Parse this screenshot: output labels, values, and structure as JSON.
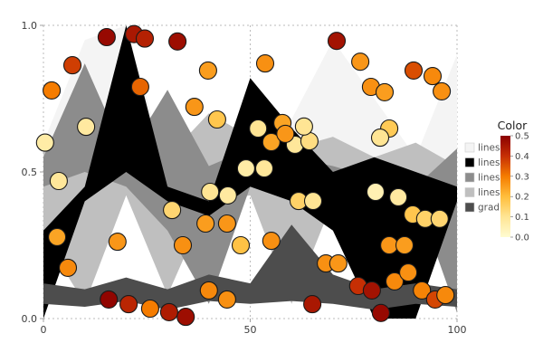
{
  "chart_data": {
    "type": "area+scatter",
    "title": "",
    "xlabel": "",
    "ylabel": "",
    "xlim": [
      0,
      100
    ],
    "ylim": [
      0,
      1
    ],
    "x_ticks": [
      0,
      50,
      100
    ],
    "x_tick_labels": [
      "0",
      "50",
      "100"
    ],
    "y_ticks": [
      0,
      0.5,
      1
    ],
    "y_tick_labels": [
      "0.0",
      "0.5",
      "1.0"
    ],
    "grid": "dotted",
    "grid_color": "#bbbbbb",
    "area_x": [
      0,
      10,
      20,
      30,
      40,
      50,
      60,
      70,
      80,
      90,
      100
    ],
    "areas": [
      {
        "label": "lines",
        "color": "#f4f4f4",
        "y1": [
          0.6,
          0.95,
          1.0,
          0.5,
          0.55,
          0.6,
          0.68,
          0.95,
          0.75,
          0.55,
          0.9
        ],
        "y0": [
          0.5,
          0.55,
          0.45,
          0.42,
          0.45,
          0.5,
          0.48,
          0.45,
          0.5,
          0.45,
          0.4
        ]
      },
      {
        "label": "lines",
        "color": "#000000",
        "y1": [
          0.3,
          0.45,
          1.0,
          0.45,
          0.4,
          0.82,
          0.65,
          0.5,
          0.55,
          0.5,
          0.45
        ],
        "y0": [
          0.0,
          0.4,
          0.5,
          0.4,
          0.35,
          0.45,
          0.4,
          0.3,
          0.0,
          0.0,
          0.4
        ]
      },
      {
        "label": "lines",
        "color": "#8c8c8c",
        "y1": [
          0.55,
          0.87,
          0.55,
          0.78,
          0.52,
          0.58,
          0.55,
          0.52,
          0.48,
          0.45,
          0.58
        ],
        "y0": [
          0.45,
          0.5,
          0.45,
          0.3,
          0.05,
          0.45,
          0.4,
          0.42,
          0.4,
          0.42,
          0.02
        ]
      },
      {
        "label": "lines",
        "color": "#bfbfbf",
        "y1": [
          0.58,
          0.52,
          0.48,
          0.55,
          0.7,
          0.62,
          0.58,
          0.62,
          0.55,
          0.6,
          0.52
        ],
        "y0": [
          0.28,
          0.05,
          0.42,
          0.08,
          0.4,
          0.42,
          0.05,
          0.4,
          0.45,
          0.3,
          0.28
        ]
      },
      {
        "label": "grad",
        "color": "#4d4d4d",
        "y1": [
          0.12,
          0.1,
          0.14,
          0.1,
          0.15,
          0.12,
          0.32,
          0.15,
          0.1,
          0.12,
          0.1
        ],
        "y0": [
          0.05,
          0.04,
          0.06,
          0.03,
          0.06,
          0.05,
          0.06,
          0.05,
          0.03,
          0.05,
          0.04
        ]
      }
    ],
    "draw_order": [
      0,
      3,
      2,
      1,
      4
    ],
    "point_radius": 9.5,
    "point_stroke": "#1a1a1a",
    "points": [
      [
        15.3,
        0.96,
        0.48
      ],
      [
        21.9,
        0.97,
        0.45
      ],
      [
        24.5,
        0.955,
        0.43
      ],
      [
        32.4,
        0.945,
        0.47
      ],
      [
        70.9,
        0.947,
        0.46
      ],
      [
        7.0,
        0.864,
        0.38
      ],
      [
        39.8,
        0.846,
        0.25
      ],
      [
        53.6,
        0.87,
        0.27
      ],
      [
        76.6,
        0.876,
        0.26
      ],
      [
        89.5,
        0.846,
        0.36
      ],
      [
        94.1,
        0.827,
        0.28
      ],
      [
        2.0,
        0.778,
        0.3
      ],
      [
        23.4,
        0.79,
        0.33
      ],
      [
        79.2,
        0.79,
        0.27
      ],
      [
        82.5,
        0.772,
        0.25
      ],
      [
        96.3,
        0.775,
        0.27
      ],
      [
        10.3,
        0.654,
        0.08
      ],
      [
        36.5,
        0.722,
        0.26
      ],
      [
        57.8,
        0.667,
        0.24
      ],
      [
        83.6,
        0.648,
        0.17
      ],
      [
        0.4,
        0.6,
        0.07
      ],
      [
        42.0,
        0.679,
        0.18
      ],
      [
        51.9,
        0.648,
        0.1
      ],
      [
        55.1,
        0.602,
        0.24
      ],
      [
        60.8,
        0.593,
        0.09
      ],
      [
        64.3,
        0.605,
        0.12
      ],
      [
        81.4,
        0.617,
        0.1
      ],
      [
        3.7,
        0.469,
        0.09
      ],
      [
        31.1,
        0.37,
        0.14
      ],
      [
        40.3,
        0.432,
        0.1
      ],
      [
        44.6,
        0.42,
        0.08
      ],
      [
        49.0,
        0.512,
        0.07
      ],
      [
        53.4,
        0.512,
        0.09
      ],
      [
        61.7,
        0.401,
        0.15
      ],
      [
        65.2,
        0.401,
        0.1
      ],
      [
        80.3,
        0.432,
        0.05
      ],
      [
        85.8,
        0.414,
        0.08
      ],
      [
        89.3,
        0.355,
        0.18
      ],
      [
        92.3,
        0.34,
        0.15
      ],
      [
        95.8,
        0.34,
        0.14
      ],
      [
        17.9,
        0.262,
        0.26
      ],
      [
        33.7,
        0.25,
        0.27
      ],
      [
        39.2,
        0.324,
        0.25
      ],
      [
        44.4,
        0.324,
        0.26
      ],
      [
        47.7,
        0.25,
        0.19
      ],
      [
        55.1,
        0.265,
        0.27
      ],
      [
        83.6,
        0.25,
        0.26
      ],
      [
        87.3,
        0.25,
        0.25
      ],
      [
        5.9,
        0.173,
        0.28
      ],
      [
        15.8,
        0.065,
        0.49
      ],
      [
        20.6,
        0.049,
        0.42
      ],
      [
        25.8,
        0.034,
        0.3
      ],
      [
        30.4,
        0.022,
        0.44
      ],
      [
        34.4,
        0.006,
        0.47
      ],
      [
        40.0,
        0.096,
        0.28
      ],
      [
        44.4,
        0.065,
        0.27
      ],
      [
        65.0,
        0.049,
        0.45
      ],
      [
        68.3,
        0.188,
        0.27
      ],
      [
        71.3,
        0.188,
        0.26
      ],
      [
        76.1,
        0.111,
        0.4
      ],
      [
        79.4,
        0.096,
        0.46
      ],
      [
        81.6,
        0.019,
        0.48
      ],
      [
        84.9,
        0.127,
        0.28
      ],
      [
        88.2,
        0.157,
        0.27
      ],
      [
        91.5,
        0.096,
        0.29
      ],
      [
        94.7,
        0.065,
        0.37
      ],
      [
        97.2,
        0.08,
        0.28
      ],
      [
        3.3,
        0.278,
        0.24
      ],
      [
        63.0,
        0.655,
        0.1
      ],
      [
        58.5,
        0.63,
        0.26
      ]
    ],
    "color_scale": {
      "title": "Color",
      "domain": [
        0,
        0.5
      ],
      "ticks": [
        0,
        0.1,
        0.2,
        0.3,
        0.4,
        0.5
      ],
      "tick_labels": [
        "0.0",
        "0.1",
        "0.2",
        "0.3",
        "0.4",
        "0.5"
      ],
      "stops": [
        [
          0.0,
          "#fffbd1"
        ],
        [
          0.1,
          "#ffe594"
        ],
        [
          0.2,
          "#ffbe3c"
        ],
        [
          0.3,
          "#f57c00"
        ],
        [
          0.4,
          "#c62f04"
        ],
        [
          0.5,
          "#8b0000"
        ]
      ]
    },
    "legend_position": "right"
  }
}
